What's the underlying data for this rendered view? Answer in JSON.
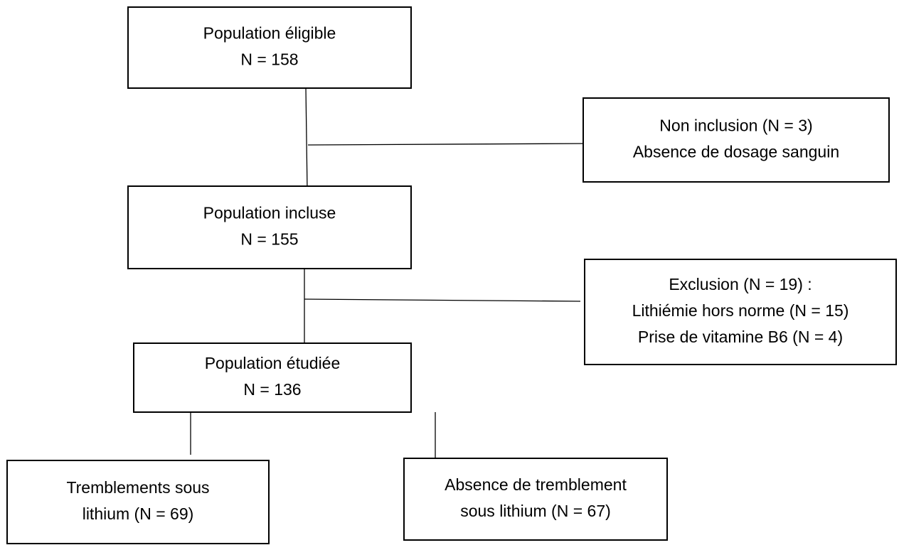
{
  "nodes": [
    {
      "lines": [
        "Population éligible",
        "N = 158"
      ]
    },
    {
      "lines": [
        "Non inclusion (N = 3)",
        "Absence de dosage sanguin"
      ]
    },
    {
      "lines": [
        "Population incluse",
        "N = 155"
      ]
    },
    {
      "lines": [
        "Exclusion (N = 19) :",
        "Lithiémie hors norme (N = 15)",
        "Prise de vitamine B6 (N = 4)"
      ]
    },
    {
      "lines": [
        "Population étudiée",
        "N = 136"
      ]
    },
    {
      "lines": [
        "Tremblements sous",
        "lithium (N = 69)"
      ]
    },
    {
      "lines": [
        "Absence de tremblement",
        "sous lithium (N = 67)"
      ]
    }
  ]
}
